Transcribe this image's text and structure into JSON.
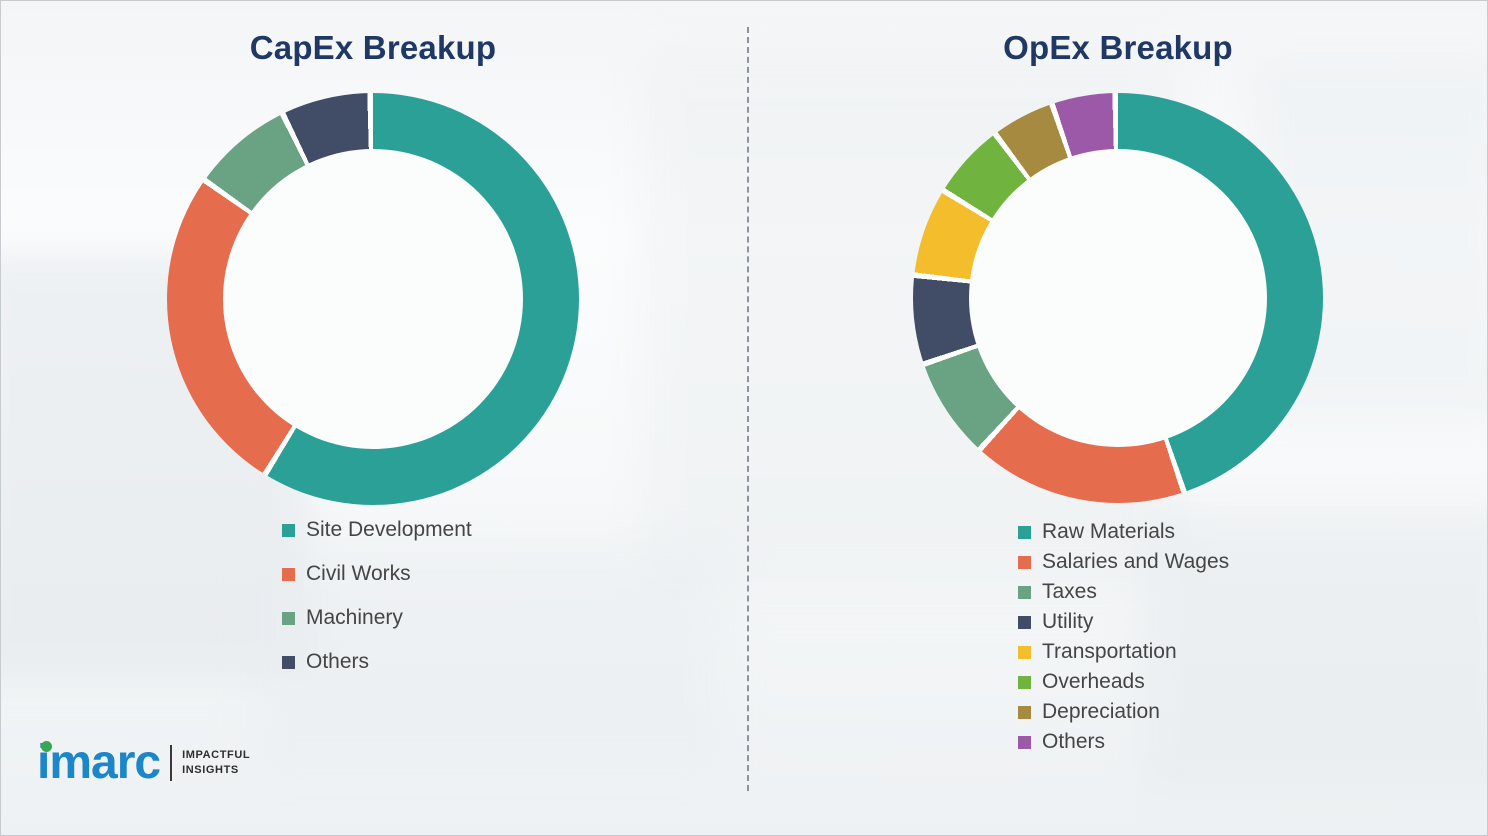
{
  "page": {
    "background_color": "#fcfdfd",
    "title_color": "#1f3864",
    "legend_text_color": "#454545",
    "divider": "vertical-dashed",
    "segment_gap_color": "#ffffff"
  },
  "chart_data": [
    {
      "type": "pie",
      "subtype": "donut",
      "title": "CapEx Breakup",
      "categories": [
        "Site Development",
        "Civil Works",
        "Machinery",
        "Others"
      ],
      "values": [
        59,
        26,
        8,
        7
      ],
      "colors": [
        "#2aa096",
        "#e66c4e",
        "#6aa383",
        "#414d66"
      ],
      "start_angle_deg": 0,
      "direction": "clockwise",
      "legend_position": "bottom-left",
      "data_labels": false
    },
    {
      "type": "pie",
      "subtype": "donut",
      "title": "OpEx Breakup",
      "categories": [
        "Raw Materials",
        "Salaries and Wages",
        "Taxes",
        "Utility",
        "Transportation",
        "Overheads",
        "Depreciation",
        "Others"
      ],
      "values": [
        45,
        17,
        8,
        7,
        7,
        6,
        5,
        5
      ],
      "colors": [
        "#2aa096",
        "#e66c4e",
        "#6aa383",
        "#414d66",
        "#f3bd2c",
        "#70b33e",
        "#a68a3f",
        "#9c59a8"
      ],
      "start_angle_deg": 0,
      "direction": "clockwise",
      "legend_position": "bottom-left",
      "data_labels": false
    }
  ],
  "logo": {
    "brand": "imarc",
    "brand_color": "#1b86c8",
    "dot_color": "#36a852",
    "tagline_line1": "IMPACTFUL",
    "tagline_line2": "INSIGHTS"
  }
}
